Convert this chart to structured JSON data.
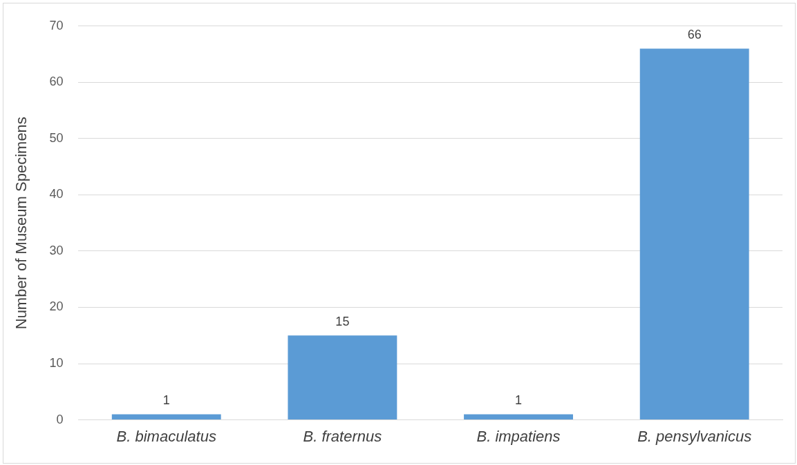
{
  "chart_data": {
    "type": "bar",
    "ylabel": "Number of Museum Specimens",
    "categories": [
      "B. bimaculatus",
      "B. fraternus",
      "B. impatiens",
      "B. pensylvanicus"
    ],
    "values": [
      1,
      15,
      1,
      66
    ],
    "color": "#5b9bd5",
    "ylim": [
      0,
      70
    ],
    "yticks": [
      0,
      10,
      20,
      30,
      40,
      50,
      60,
      70
    ],
    "grid": "y",
    "data_labels": true,
    "legend": false
  }
}
